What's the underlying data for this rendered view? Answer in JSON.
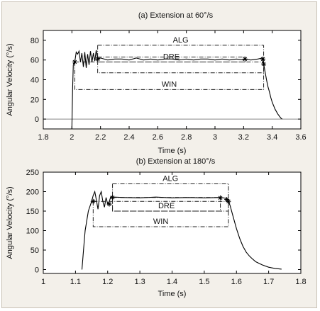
{
  "chart_data": [
    {
      "type": "line",
      "title": "(a) Extension at 60°/s",
      "xlabel": "Time (s)",
      "ylabel": "Angular Velocity (°/s)",
      "xlim": [
        1.8,
        3.6
      ],
      "ylim": [
        -10,
        90
      ],
      "xticks": [
        "1.8",
        "2",
        "2.2",
        "2.4",
        "2.6",
        "2.8",
        "3",
        "3.2",
        "3.4",
        "3.6"
      ],
      "yticks": [
        "0",
        "20",
        "40",
        "60",
        "80"
      ],
      "grid": false,
      "series": [
        {
          "x": [
            2.0,
            2.005,
            2.01,
            2.02,
            2.03,
            2.04,
            2.05,
            2.06,
            2.07,
            2.08,
            2.09,
            2.1,
            2.11,
            2.12,
            2.13,
            2.14,
            2.15,
            2.16,
            2.17,
            2.18,
            2.2,
            2.25,
            2.3,
            2.35,
            2.4,
            2.45,
            2.5,
            2.55,
            2.6,
            2.65,
            2.7,
            2.75,
            2.8,
            2.85,
            2.9,
            2.95,
            3.0,
            3.05,
            3.1,
            3.15,
            3.2,
            3.21,
            3.25,
            3.3,
            3.33,
            3.335,
            3.34,
            3.35,
            3.36,
            3.37,
            3.38,
            3.39,
            3.4,
            3.42,
            3.44,
            3.46,
            3.47
          ],
          "values": [
            -10,
            30,
            55,
            58,
            68,
            66,
            69,
            58,
            67,
            53,
            68,
            52,
            66,
            55,
            69,
            58,
            67,
            59,
            70,
            61,
            62,
            60,
            61,
            61,
            60,
            62,
            60,
            61,
            60,
            61,
            61,
            60,
            61,
            60,
            61,
            61,
            60,
            61,
            60,
            61,
            60,
            61,
            60,
            61,
            62,
            58,
            56,
            48,
            40,
            33,
            28,
            22,
            17,
            10,
            5,
            1,
            0
          ]
        }
      ],
      "markers": [
        {
          "x": 2.02,
          "y": 58
        },
        {
          "x": 2.18,
          "y": 61
        },
        {
          "x": 3.21,
          "y": 61
        },
        {
          "x": 3.335,
          "y": 61
        },
        {
          "x": 3.34,
          "y": 56
        }
      ],
      "reference_line_y": 0,
      "annotations": [
        {
          "label": "ALG",
          "x": [
            2.18,
            3.34
          ],
          "y": [
            47,
            75
          ]
        },
        {
          "label": "DRE",
          "x": [
            2.18,
            3.21
          ],
          "y": [
            58,
            63
          ]
        },
        {
          "label": "WIN",
          "x": [
            2.02,
            3.34
          ],
          "y": [
            30,
            58
          ]
        }
      ]
    },
    {
      "type": "line",
      "title": "(b) Extension at 180°/s",
      "xlabel": "Time (s)",
      "ylabel": "Angular Velocity (°/s)",
      "xlim": [
        1,
        1.8
      ],
      "ylim": [
        -10,
        250
      ],
      "xticks": [
        "1",
        "1.1",
        "1.2",
        "1.3",
        "1.4",
        "1.5",
        "1.6",
        "1.7",
        "1.8"
      ],
      "yticks": [
        "0",
        "50",
        "100",
        "150",
        "200",
        "250"
      ],
      "grid": false,
      "series": [
        {
          "x": [
            1.12,
            1.125,
            1.13,
            1.14,
            1.15,
            1.155,
            1.16,
            1.165,
            1.17,
            1.175,
            1.18,
            1.185,
            1.19,
            1.195,
            1.2,
            1.205,
            1.21,
            1.215,
            1.22,
            1.25,
            1.3,
            1.35,
            1.4,
            1.45,
            1.5,
            1.55,
            1.56,
            1.57,
            1.575,
            1.58,
            1.59,
            1.6,
            1.61,
            1.62,
            1.63,
            1.64,
            1.65,
            1.66,
            1.68,
            1.7,
            1.72,
            1.74
          ],
          "values": [
            0,
            50,
            100,
            150,
            175,
            190,
            200,
            178,
            155,
            190,
            200,
            175,
            160,
            185,
            168,
            175,
            188,
            184,
            186,
            185,
            184,
            186,
            184,
            185,
            184,
            185,
            184,
            182,
            175,
            165,
            135,
            105,
            80,
            60,
            45,
            35,
            27,
            20,
            12,
            6,
            3,
            1
          ]
        }
      ],
      "markers": [
        {
          "x": 1.155,
          "y": 175
        },
        {
          "x": 1.205,
          "y": 168
        },
        {
          "x": 1.215,
          "y": 185
        },
        {
          "x": 1.55,
          "y": 184
        },
        {
          "x": 1.57,
          "y": 180
        },
        {
          "x": 1.575,
          "y": 175
        }
      ],
      "reference_line_y": null,
      "annotations": [
        {
          "label": "ALG",
          "x": [
            1.215,
            1.575
          ],
          "y": [
            150,
            220
          ]
        },
        {
          "label": "DRE",
          "x": [
            1.215,
            1.55
          ],
          "y": [
            150,
            185
          ]
        },
        {
          "label": "WIN",
          "x": [
            1.155,
            1.575
          ],
          "y": [
            110,
            175
          ]
        }
      ]
    }
  ]
}
